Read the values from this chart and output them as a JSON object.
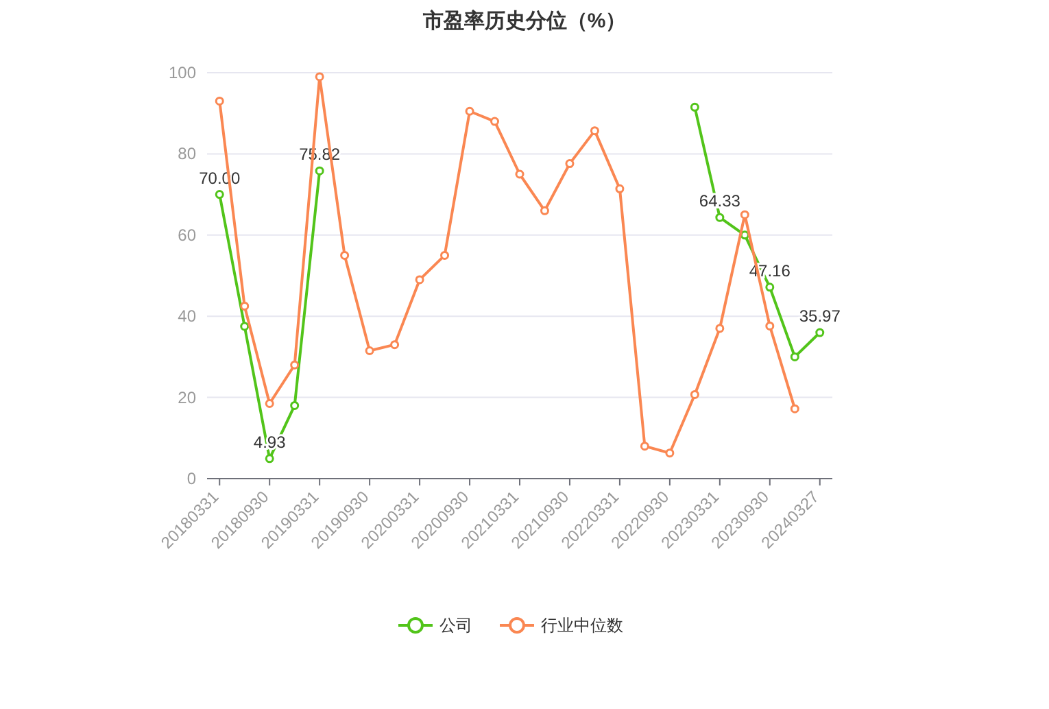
{
  "chart_data": {
    "type": "line",
    "title": "市盈率历史分位（%）",
    "categories": [
      "20180331",
      null,
      "20180930",
      null,
      "20190331",
      null,
      "20190930",
      null,
      "20200331",
      null,
      "20200930",
      null,
      "20210331",
      null,
      "20210930",
      null,
      "20220331",
      null,
      "20220930",
      null,
      "20230331",
      null,
      "20230930",
      null,
      "20240327"
    ],
    "series": [
      {
        "name": "公司",
        "color": "#52c41a",
        "values": [
          70.0,
          37.5,
          4.93,
          18,
          75.82,
          null,
          null,
          null,
          null,
          null,
          null,
          null,
          null,
          null,
          null,
          null,
          null,
          null,
          null,
          91.5,
          64.33,
          60,
          47.16,
          30,
          35.97
        ],
        "value_labels": [
          "70.00",
          null,
          "4.93",
          null,
          "75.82",
          null,
          null,
          null,
          null,
          null,
          null,
          null,
          null,
          null,
          null,
          null,
          null,
          null,
          null,
          null,
          "64.33",
          null,
          "47.16",
          null,
          "35.97"
        ]
      },
      {
        "name": "行业中位数",
        "color": "#fa8752",
        "values": [
          93,
          42.5,
          18.5,
          28,
          99,
          55,
          31.5,
          33,
          49,
          55,
          90.5,
          88,
          75,
          66,
          77.6,
          85.7,
          71.4,
          8,
          6.3,
          20.7,
          37,
          65,
          37.6,
          17.2,
          null
        ]
      }
    ],
    "ylim": [
      0,
      100
    ],
    "yticks": [
      0,
      20,
      40,
      60,
      80,
      100
    ],
    "grid": "y",
    "legend": "bottom",
    "marker": "circle",
    "line_style": "solid"
  }
}
